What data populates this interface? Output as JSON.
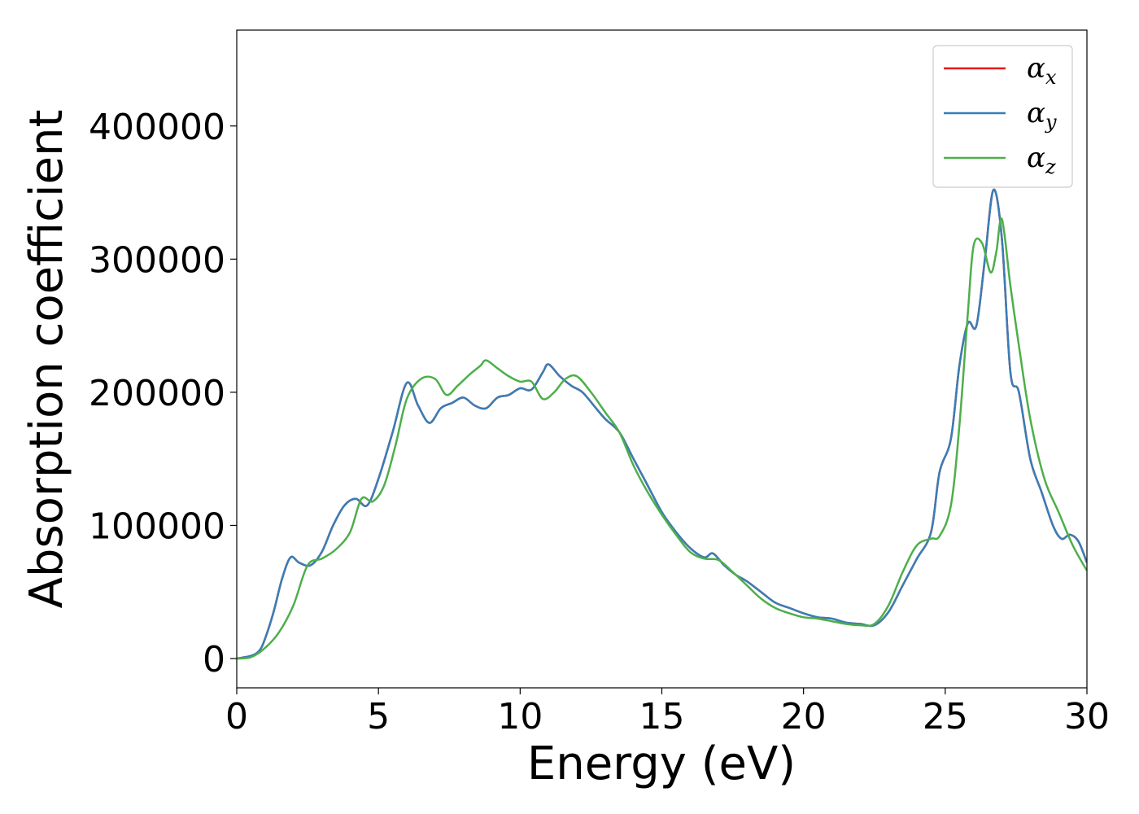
{
  "chart_data": {
    "type": "line",
    "title": "",
    "xlabel": "Energy (eV)",
    "ylabel": "Absorption coefficient",
    "xlim": [
      0,
      30
    ],
    "ylim": [
      -22000,
      472000
    ],
    "xticks": [
      0,
      5,
      10,
      15,
      20,
      25,
      30
    ],
    "xtick_labels": [
      "0",
      "5",
      "10",
      "15",
      "20",
      "25",
      "30"
    ],
    "yticks": [
      0,
      100000,
      200000,
      300000,
      400000
    ],
    "ytick_labels": [
      "0",
      "100000",
      "200000",
      "300000",
      "400000"
    ],
    "grid": false,
    "legend_position": "top-right",
    "series": [
      {
        "name": "α_x",
        "legend_base": "α",
        "legend_sub": "x",
        "color": "#e41a1c",
        "x": [
          0,
          0.5,
          0.8,
          1.0,
          1.3,
          1.6,
          1.9,
          2.2,
          2.6,
          3.0,
          3.4,
          3.8,
          4.2,
          4.6,
          5.0,
          5.5,
          6.0,
          6.4,
          6.8,
          7.2,
          7.6,
          8.0,
          8.4,
          8.8,
          9.2,
          9.6,
          10.0,
          10.4,
          10.8,
          11.0,
          11.4,
          11.8,
          12.2,
          12.6,
          13.0,
          13.5,
          14.0,
          14.5,
          15.0,
          15.5,
          16.0,
          16.5,
          16.8,
          17.2,
          17.6,
          18.0,
          18.5,
          19.0,
          19.5,
          20.0,
          20.5,
          21.0,
          21.5,
          22.0,
          22.5,
          23.0,
          23.5,
          24.0,
          24.5,
          24.8,
          25.2,
          25.5,
          25.8,
          26.1,
          26.4,
          26.7,
          27.0,
          27.3,
          27.6,
          28.0,
          28.4,
          28.8,
          29.1,
          29.4,
          29.7,
          30.0
        ],
        "y": [
          0,
          2000,
          6000,
          15000,
          35000,
          60000,
          76000,
          72000,
          70000,
          80000,
          100000,
          115000,
          120000,
          115000,
          135000,
          170000,
          207000,
          190000,
          177000,
          188000,
          192000,
          196000,
          190000,
          188000,
          196000,
          198000,
          203000,
          202000,
          215000,
          221000,
          212000,
          205000,
          200000,
          190000,
          180000,
          170000,
          150000,
          130000,
          110000,
          95000,
          83000,
          76000,
          79000,
          70000,
          63000,
          58000,
          50000,
          42000,
          38000,
          34000,
          31000,
          30000,
          27000,
          26000,
          25000,
          35000,
          55000,
          75000,
          95000,
          140000,
          165000,
          220000,
          252000,
          250000,
          300000,
          352000,
          315000,
          215000,
          200000,
          150000,
          125000,
          100000,
          90000,
          93000,
          88000,
          72000
        ]
      },
      {
        "name": "α_y",
        "legend_base": "α",
        "legend_sub": "y",
        "color": "#377eb8",
        "x": [
          0,
          0.5,
          0.8,
          1.0,
          1.3,
          1.6,
          1.9,
          2.2,
          2.6,
          3.0,
          3.4,
          3.8,
          4.2,
          4.6,
          5.0,
          5.5,
          6.0,
          6.4,
          6.8,
          7.2,
          7.6,
          8.0,
          8.4,
          8.8,
          9.2,
          9.6,
          10.0,
          10.4,
          10.8,
          11.0,
          11.4,
          11.8,
          12.2,
          12.6,
          13.0,
          13.5,
          14.0,
          14.5,
          15.0,
          15.5,
          16.0,
          16.5,
          16.8,
          17.2,
          17.6,
          18.0,
          18.5,
          19.0,
          19.5,
          20.0,
          20.5,
          21.0,
          21.5,
          22.0,
          22.5,
          23.0,
          23.5,
          24.0,
          24.5,
          24.8,
          25.2,
          25.5,
          25.8,
          26.1,
          26.4,
          26.7,
          27.0,
          27.3,
          27.6,
          28.0,
          28.4,
          28.8,
          29.1,
          29.4,
          29.7,
          30.0
        ],
        "y": [
          0,
          2000,
          6000,
          15000,
          35000,
          60000,
          76000,
          72000,
          70000,
          80000,
          100000,
          115000,
          120000,
          115000,
          135000,
          170000,
          207000,
          190000,
          177000,
          188000,
          192000,
          196000,
          190000,
          188000,
          196000,
          198000,
          203000,
          202000,
          215000,
          221000,
          212000,
          205000,
          200000,
          190000,
          180000,
          170000,
          150000,
          130000,
          110000,
          95000,
          83000,
          76000,
          79000,
          70000,
          63000,
          58000,
          50000,
          42000,
          38000,
          34000,
          31000,
          30000,
          27000,
          26000,
          25000,
          35000,
          55000,
          75000,
          95000,
          140000,
          165000,
          220000,
          252000,
          250000,
          300000,
          352000,
          315000,
          215000,
          200000,
          150000,
          125000,
          100000,
          90000,
          93000,
          88000,
          72000
        ]
      },
      {
        "name": "α_z",
        "legend_base": "α",
        "legend_sub": "z",
        "color": "#4daf4a",
        "x": [
          0,
          0.5,
          1.0,
          1.5,
          2.0,
          2.5,
          3.0,
          3.5,
          4.0,
          4.4,
          4.8,
          5.2,
          5.6,
          6.0,
          6.5,
          7.0,
          7.4,
          7.8,
          8.2,
          8.6,
          8.8,
          9.2,
          9.6,
          10.0,
          10.4,
          10.8,
          11.2,
          11.6,
          12.0,
          12.5,
          13.0,
          13.5,
          14.0,
          14.5,
          15.0,
          15.5,
          16.0,
          16.5,
          17.0,
          17.5,
          18.0,
          18.5,
          19.0,
          19.5,
          20.0,
          20.5,
          21.0,
          21.5,
          22.0,
          22.5,
          23.0,
          23.5,
          24.0,
          24.5,
          24.8,
          25.2,
          25.5,
          25.8,
          26.0,
          26.3,
          26.6,
          26.8,
          27.0,
          27.3,
          27.6,
          28.0,
          28.5,
          29.0,
          29.5,
          30.0
        ],
        "y": [
          0,
          1000,
          8000,
          20000,
          40000,
          70000,
          75000,
          82000,
          95000,
          120000,
          118000,
          130000,
          160000,
          195000,
          210000,
          210000,
          198000,
          205000,
          213000,
          220000,
          224000,
          218000,
          212000,
          208000,
          208000,
          195000,
          200000,
          210000,
          212000,
          200000,
          185000,
          170000,
          145000,
          125000,
          108000,
          93000,
          80000,
          75000,
          74000,
          65000,
          55000,
          45000,
          38000,
          34000,
          31000,
          30000,
          28000,
          26000,
          25000,
          26000,
          40000,
          65000,
          85000,
          90000,
          92000,
          115000,
          175000,
          260000,
          310000,
          312000,
          290000,
          305000,
          330000,
          280000,
          235000,
          180000,
          135000,
          110000,
          85000,
          66000
        ]
      }
    ]
  }
}
